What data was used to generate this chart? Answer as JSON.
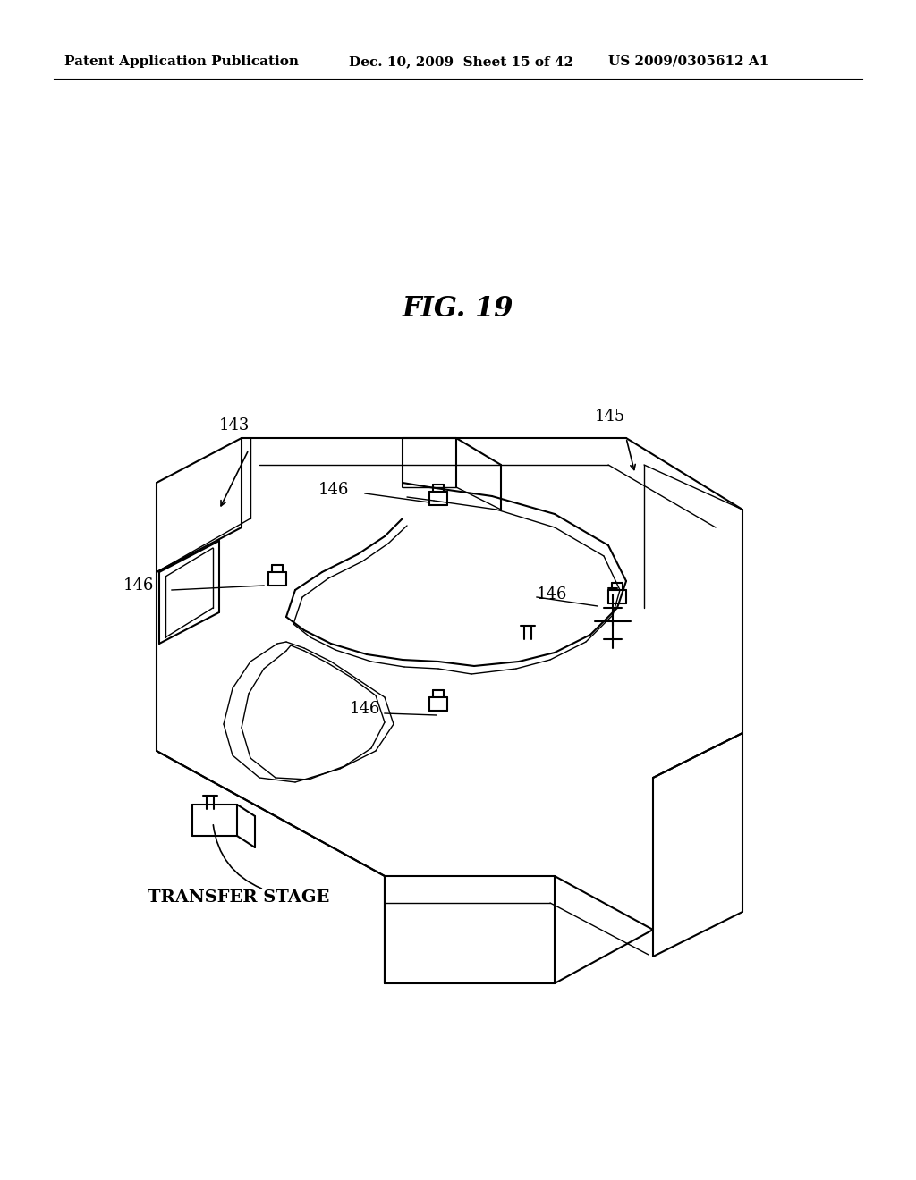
{
  "header_left": "Patent Application Publication",
  "header_mid": "Dec. 10, 2009  Sheet 15 of 42",
  "header_right": "US 2009/0305612 A1",
  "fig_title": "FIG. 19",
  "background_color": "#ffffff",
  "line_color": "#000000",
  "label_143": "143",
  "label_145": "145",
  "label_146": "146",
  "label_transfer": "TRANSFER STAGE",
  "header_fontsize": 11,
  "title_fontsize": 22,
  "annotation_fontsize": 13
}
